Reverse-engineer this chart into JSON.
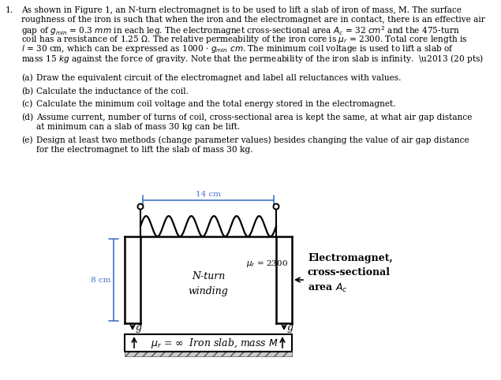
{
  "background_color": "#ffffff",
  "text_color": "#000000",
  "blue_color": "#4472c4",
  "fig_label_14cm": "14 cm",
  "fig_label_8cm": "8 cm",
  "fig_label_mu_r": "$\\mu_r$ = 2300",
  "fig_label_nturn": "N-turn\nwinding",
  "fig_label_electromagnet": "Electromagnet,\ncross-sectional\narea $A_c$",
  "fig_label_iron": "$\\mu_r$ = ∞  Iron slab, mass $M$",
  "fig_label_g": "g"
}
